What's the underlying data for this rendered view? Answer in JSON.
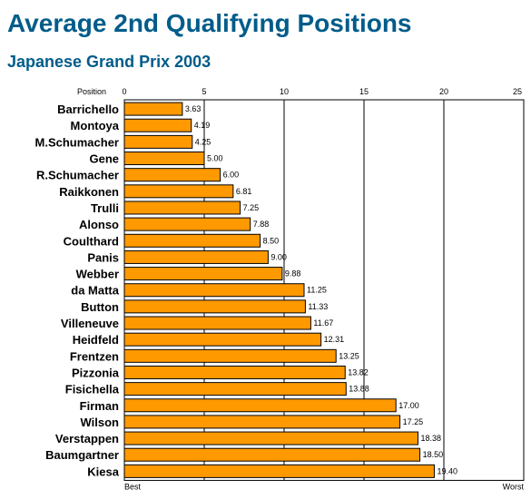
{
  "title": "Average 2nd Qualifying Positions",
  "subtitle": "Japanese Grand Prix 2003",
  "colors": {
    "title": "#005c8a",
    "bar": "#ff9900",
    "bar_stroke": "#000000",
    "grid": "#000000"
  },
  "chart_data": {
    "type": "bar",
    "orientation": "horizontal",
    "axis_label": "Position",
    "min_label": "Best",
    "max_label": "Worst",
    "xlim": [
      0,
      25
    ],
    "xticks": [
      0,
      5,
      10,
      15,
      20,
      25
    ],
    "grid": true,
    "categories": [
      "Barrichello",
      "Montoya",
      "M.Schumacher",
      "Gene",
      "R.Schumacher",
      "Raikkonen",
      "Trulli",
      "Alonso",
      "Coulthard",
      "Panis",
      "Webber",
      "da Matta",
      "Button",
      "Villeneuve",
      "Heidfeld",
      "Frentzen",
      "Pizzonia",
      "Fisichella",
      "Firman",
      "Wilson",
      "Verstappen",
      "Baumgartner",
      "Kiesa"
    ],
    "values": [
      3.63,
      4.19,
      4.25,
      5.0,
      6.0,
      6.81,
      7.25,
      7.88,
      8.5,
      9.0,
      9.88,
      11.25,
      11.33,
      11.67,
      12.31,
      13.25,
      13.82,
      13.88,
      17.0,
      17.25,
      18.38,
      18.5,
      19.4
    ],
    "value_labels": [
      "3.63",
      "4.19",
      "4.25",
      "5.00",
      "6.00",
      "6.81",
      "7.25",
      "7.88",
      "8.50",
      "9.00",
      "9.88",
      "11.25",
      "11.33",
      "11.67",
      "12.31",
      "13.25",
      "13.82",
      "13.88",
      "17.00",
      "17.25",
      "18.38",
      "18.50",
      "19.40"
    ]
  }
}
